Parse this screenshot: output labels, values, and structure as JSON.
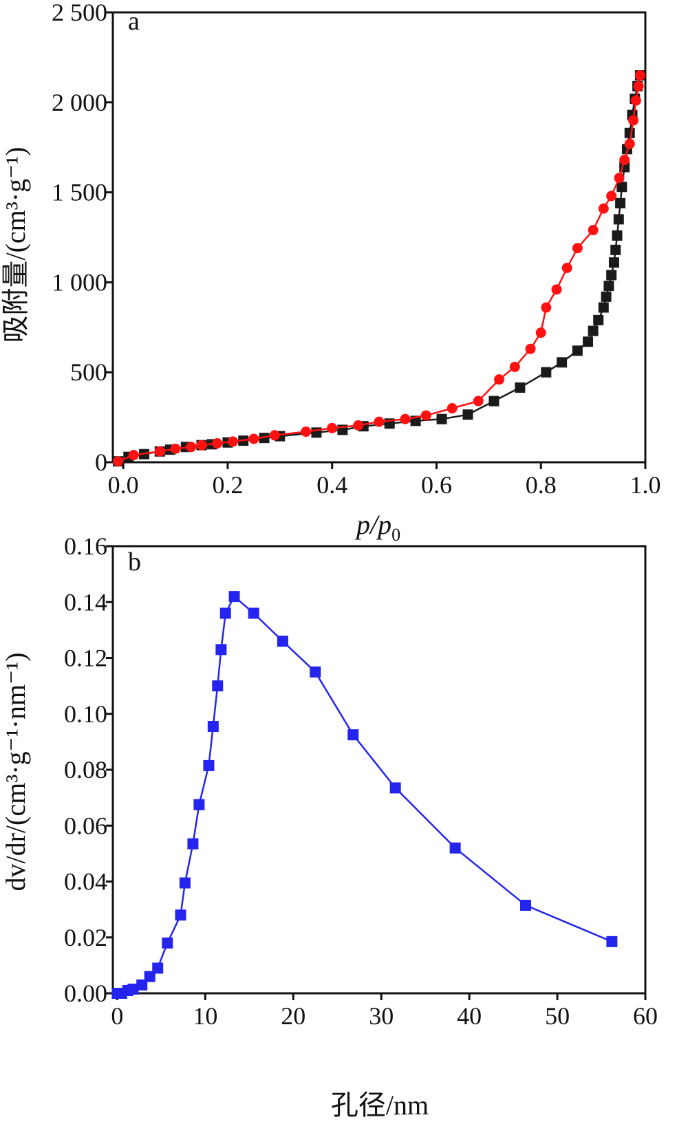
{
  "chart_data": [
    {
      "type": "line",
      "panel_label": "a",
      "xlabel": "p/p0",
      "xlabel_main": "p/p",
      "xlabel_sub": "0",
      "ylabel": "吸附量/(cm³·g⁻¹)",
      "xlim": [
        -0.02,
        1.0
      ],
      "ylim": [
        0,
        2500
      ],
      "x_ticks": [
        0.0,
        0.2,
        0.4,
        0.6,
        0.8,
        1.0
      ],
      "x_tick_labels": [
        "0.0",
        "0.2",
        "0.4",
        "0.6",
        "0.8",
        "1.0"
      ],
      "y_ticks": [
        0,
        500,
        1000,
        1500,
        2000,
        2500
      ],
      "y_tick_labels": [
        "0",
        "500",
        "1 000",
        "1 500",
        "2 000",
        "2 500"
      ],
      "grid": false,
      "legend": "none",
      "series": [
        {
          "marker": "square",
          "color": "#1a1a1a",
          "x": [
            -0.01,
            0.01,
            0.04,
            0.07,
            0.09,
            0.12,
            0.15,
            0.17,
            0.2,
            0.23,
            0.27,
            0.3,
            0.37,
            0.42,
            0.46,
            0.51,
            0.56,
            0.61,
            0.66,
            0.71,
            0.76,
            0.81,
            0.84,
            0.87,
            0.89,
            0.9,
            0.91,
            0.92,
            0.925,
            0.93,
            0.935,
            0.94,
            0.943,
            0.946,
            0.949,
            0.952,
            0.955,
            0.96,
            0.965,
            0.97,
            0.975,
            0.98,
            0.985,
            0.99
          ],
          "y": [
            5,
            30,
            45,
            60,
            70,
            85,
            95,
            100,
            110,
            120,
            135,
            145,
            165,
            180,
            200,
            215,
            230,
            240,
            265,
            340,
            415,
            500,
            555,
            620,
            670,
            730,
            790,
            860,
            920,
            980,
            1040,
            1110,
            1180,
            1260,
            1350,
            1440,
            1530,
            1640,
            1740,
            1830,
            1930,
            2020,
            2090,
            2150
          ]
        },
        {
          "marker": "circle",
          "color": "#ff1111",
          "x": [
            -0.01,
            0.02,
            0.07,
            0.1,
            0.13,
            0.15,
            0.18,
            0.21,
            0.25,
            0.29,
            0.35,
            0.4,
            0.45,
            0.49,
            0.54,
            0.58,
            0.63,
            0.68,
            0.72,
            0.75,
            0.78,
            0.8,
            0.81,
            0.83,
            0.85,
            0.87,
            0.9,
            0.92,
            0.935,
            0.95,
            0.96,
            0.97,
            0.977,
            0.982,
            0.987,
            0.99
          ],
          "y": [
            5,
            40,
            60,
            75,
            85,
            95,
            105,
            115,
            130,
            150,
            170,
            190,
            205,
            225,
            240,
            260,
            300,
            340,
            460,
            530,
            630,
            720,
            860,
            960,
            1080,
            1190,
            1290,
            1410,
            1480,
            1580,
            1680,
            1770,
            1900,
            2010,
            2090,
            2150
          ]
        }
      ]
    },
    {
      "type": "line",
      "panel_label": "b",
      "xlabel": "孔径/nm",
      "ylabel": "dv/dr/(cm³·g⁻¹·nm⁻¹)",
      "xlim": [
        -0.5,
        60
      ],
      "ylim": [
        0,
        0.16
      ],
      "x_ticks": [
        0,
        10,
        20,
        30,
        40,
        50,
        60
      ],
      "x_tick_labels": [
        "0",
        "10",
        "20",
        "30",
        "40",
        "50",
        "60"
      ],
      "y_ticks": [
        0.0,
        0.02,
        0.04,
        0.06,
        0.08,
        0.1,
        0.12,
        0.14,
        0.16
      ],
      "y_tick_labels": [
        "0.00",
        "0.02",
        "0.04",
        "0.06",
        "0.08",
        "0.10",
        "0.12",
        "0.14",
        "0.16"
      ],
      "grid": false,
      "legend": "none",
      "series": [
        {
          "marker": "square",
          "color": "#2424ee",
          "x": [
            0.0,
            0.5,
            1.2,
            1.8,
            2.8,
            3.7,
            4.6,
            5.7,
            7.2,
            7.7,
            8.6,
            9.3,
            10.4,
            10.9,
            11.4,
            11.8,
            12.3,
            13.3,
            15.5,
            18.8,
            22.5,
            26.8,
            31.6,
            38.4,
            46.4,
            56.2
          ],
          "y": [
            0.0,
            0.0,
            0.001,
            0.0015,
            0.003,
            0.006,
            0.009,
            0.018,
            0.028,
            0.0395,
            0.0535,
            0.0675,
            0.0815,
            0.0955,
            0.11,
            0.123,
            0.136,
            0.142,
            0.136,
            0.126,
            0.115,
            0.0925,
            0.0735,
            0.052,
            0.0315,
            0.0185
          ]
        }
      ]
    }
  ]
}
